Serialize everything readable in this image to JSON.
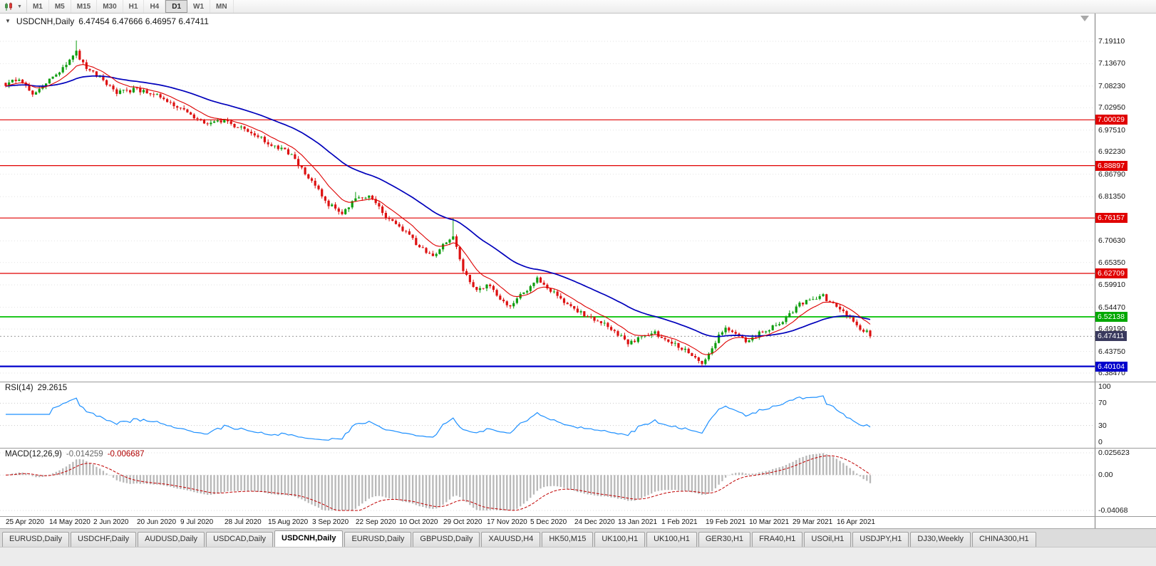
{
  "toolbar": {
    "timeframes": [
      "M1",
      "M5",
      "M15",
      "M30",
      "H1",
      "H4",
      "D1",
      "W1",
      "MN"
    ],
    "active_timeframe": "D1"
  },
  "chart": {
    "symbol_title": "USDCNH,Daily",
    "ohlc_text": "6.47454 6.47666 6.46957 6.47411"
  },
  "price_axis": {
    "ticks": [
      "7.19110",
      "7.13670",
      "7.08230",
      "7.02950",
      "6.97510",
      "6.92230",
      "6.86790",
      "6.81350",
      "6.70630",
      "6.65350",
      "6.59910",
      "6.54470",
      "6.49190",
      "6.43750",
      "6.38470"
    ],
    "badges": [
      {
        "text": "7.00029",
        "price": 7.00029,
        "bg": "#e00000"
      },
      {
        "text": "6.88897",
        "price": 6.88897,
        "bg": "#e00000"
      },
      {
        "text": "6.76157",
        "price": 6.76157,
        "bg": "#e00000"
      },
      {
        "text": "6.62709",
        "price": 6.62709,
        "bg": "#e00000"
      },
      {
        "text": "6.52138",
        "price": 6.52138,
        "bg": "#00a800"
      },
      {
        "text": "6.47411",
        "price": 6.47411,
        "bg": "#3a3a5e"
      },
      {
        "text": "6.40104",
        "price": 6.40104,
        "bg": "#0000cc"
      }
    ]
  },
  "rsi": {
    "header_label": "RSI(14)",
    "header_value": "29.2615",
    "axis": [
      "100",
      "70",
      "30",
      "0"
    ],
    "levels": [
      70,
      30
    ],
    "color": "#1e90ff"
  },
  "macd": {
    "header_label": "MACD(12,26,9)",
    "header_value_main": "-0.014259",
    "header_value_signal": "-0.006687",
    "axis": [
      "0.025623",
      "0.00",
      "-0.04068"
    ],
    "range": {
      "max": 0.025623,
      "min": -0.04068
    }
  },
  "date_axis": [
    "25 Apr 2020",
    "14 May 2020",
    "2 Jun 2020",
    "20 Jun 2020",
    "9 Jul 2020",
    "28 Jul 2020",
    "15 Aug 2020",
    "3 Sep 2020",
    "22 Sep 2020",
    "10 Oct 2020",
    "29 Oct 2020",
    "17 Nov 2020",
    "5 Dec 2020",
    "24 Dec 2020",
    "13 Jan 2021",
    "1 Feb 2021",
    "19 Feb 2021",
    "10 Mar 2021",
    "29 Mar 2021",
    "16 Apr 2021"
  ],
  "tabs": [
    "EURUSD,Daily",
    "USDCHF,Daily",
    "AUDUSD,Daily",
    "USDCAD,Daily",
    "USDCNH,Daily",
    "EURUSD,Daily",
    "GBPUSD,Daily",
    "XAUUSD,H4",
    "HK50,M15",
    "UK100,H1",
    "UK100,H1",
    "GER30,H1",
    "FRA40,H1",
    "USOil,H1",
    "USDJPY,H1",
    "DJ30,Weekly",
    "CHINA300,H1"
  ],
  "active_tab_index": 4,
  "chart_data": {
    "type": "candlestick",
    "symbol": "USDCNH",
    "timeframe": "Daily",
    "title": "USDCNH,Daily",
    "n_candles": 258,
    "last_close": 6.47411,
    "price_range": {
      "top": 7.2586,
      "bottom": 6.364
    },
    "candle_up_color": "#0f9d0f",
    "candle_down_color": "#dd1111",
    "ma": {
      "fast_period": 10,
      "fast_color": "#dd0000",
      "slow_period": 40,
      "slow_color": "#0000bb"
    },
    "rsi_period": 14,
    "macd_params": [
      12,
      26,
      9
    ],
    "hlines": [
      {
        "price": 7.00029,
        "color": "#e00000",
        "width": 1.2
      },
      {
        "price": 6.88897,
        "color": "#e00000",
        "width": 1.2
      },
      {
        "price": 6.76157,
        "color": "#e00000",
        "width": 1.2
      },
      {
        "price": 6.62709,
        "color": "#e00000",
        "width": 1.2
      },
      {
        "price": 6.52138,
        "color": "#00c000",
        "width": 1.8
      },
      {
        "price": 6.40104,
        "color": "#0000cc",
        "width": 2.2
      }
    ],
    "price_anchors": [
      [
        0,
        7.085
      ],
      [
        4,
        7.1
      ],
      [
        8,
        7.065
      ],
      [
        13,
        7.095
      ],
      [
        17,
        7.125
      ],
      [
        21,
        7.165
      ],
      [
        24,
        7.125
      ],
      [
        28,
        7.1
      ],
      [
        33,
        7.065
      ],
      [
        39,
        7.075
      ],
      [
        45,
        7.06
      ],
      [
        52,
        7.03
      ],
      [
        58,
        6.995
      ],
      [
        65,
        6.995
      ],
      [
        72,
        6.975
      ],
      [
        78,
        6.945
      ],
      [
        85,
        6.915
      ],
      [
        91,
        6.85
      ],
      [
        96,
        6.795
      ],
      [
        100,
        6.775
      ],
      [
        104,
        6.805
      ],
      [
        108,
        6.815
      ],
      [
        113,
        6.765
      ],
      [
        117,
        6.74
      ],
      [
        122,
        6.7
      ],
      [
        127,
        6.665
      ],
      [
        130,
        6.695
      ],
      [
        133,
        6.715
      ],
      [
        136,
        6.635
      ],
      [
        140,
        6.585
      ],
      [
        143,
        6.6
      ],
      [
        147,
        6.565
      ],
      [
        150,
        6.55
      ],
      [
        154,
        6.58
      ],
      [
        158,
        6.615
      ],
      [
        162,
        6.585
      ],
      [
        167,
        6.55
      ],
      [
        170,
        6.535
      ],
      [
        174,
        6.52
      ],
      [
        178,
        6.505
      ],
      [
        182,
        6.478
      ],
      [
        185,
        6.46
      ],
      [
        188,
        6.468
      ],
      [
        192,
        6.485
      ],
      [
        196,
        6.47
      ],
      [
        200,
        6.45
      ],
      [
        203,
        6.438
      ],
      [
        207,
        6.405
      ],
      [
        209,
        6.43
      ],
      [
        212,
        6.475
      ],
      [
        214,
        6.5
      ],
      [
        217,
        6.478
      ],
      [
        220,
        6.46
      ],
      [
        223,
        6.475
      ],
      [
        226,
        6.49
      ],
      [
        229,
        6.5
      ],
      [
        232,
        6.52
      ],
      [
        235,
        6.545
      ],
      [
        238,
        6.562
      ],
      [
        241,
        6.57
      ],
      [
        243,
        6.572
      ],
      [
        245,
        6.556
      ],
      [
        248,
        6.54
      ],
      [
        251,
        6.515
      ],
      [
        254,
        6.49
      ],
      [
        256,
        6.483
      ],
      [
        257,
        6.47411
      ]
    ],
    "spikes": [
      {
        "i": 21,
        "h": 7.193
      },
      {
        "i": 104,
        "h": 6.825
      },
      {
        "i": 133,
        "h": 6.7615
      },
      {
        "i": 207,
        "l": 6.40104
      }
    ]
  }
}
